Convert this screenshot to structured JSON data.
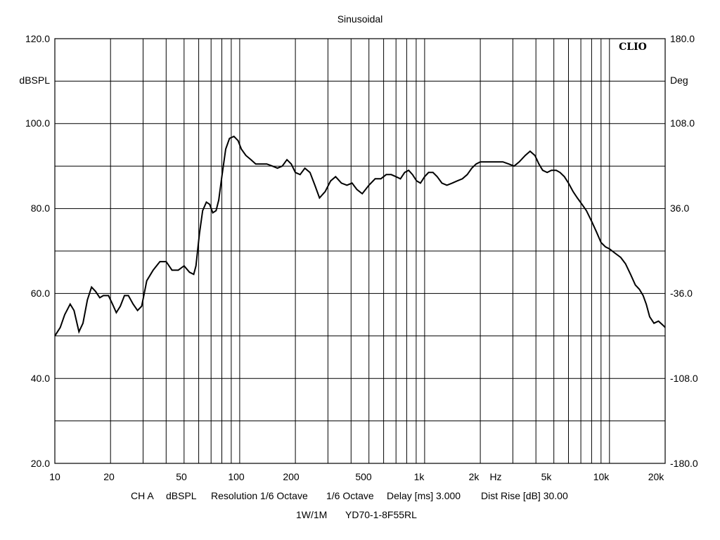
{
  "chart_data": {
    "type": "line",
    "title": "Sinusoidal",
    "watermark": "CLIO",
    "ylabel": "dBSPL",
    "y2label": "Deg",
    "xunit": "Hz",
    "xscale": "log",
    "xlim": [
      10,
      20000
    ],
    "ylim": [
      20,
      120
    ],
    "y2lim": [
      -180,
      180
    ],
    "grid": true,
    "y_ticks": [
      "120.0",
      "",
      "100.0",
      "80.0",
      "60.0",
      "40.0",
      "20.0"
    ],
    "y2_ticks": [
      "180.0",
      "108.0",
      "36.0",
      "-36.0",
      "-108.0",
      "-180.0"
    ],
    "x_ticks": [
      "10",
      "20",
      "50",
      "100",
      "200",
      "500",
      "1k",
      "2k",
      "5k",
      "10k",
      "20k"
    ],
    "footer_line1": [
      "CH A",
      "dBSPL",
      "Resolution 1/6 Octave",
      "1/6 Octave",
      "Delay [ms] 3.000",
      "Dist Rise [dB] 30.00"
    ],
    "footer_line2": [
      "1W/1M",
      "YD70-1-8F55RL"
    ],
    "series": [
      {
        "color": "#000000",
        "x": [
          10,
          10.7,
          11.3,
          12.1,
          12.7,
          13.5,
          14.2,
          15,
          15.8,
          16.6,
          17.5,
          18.3,
          19.5,
          20.5,
          21.5,
          22.6,
          23.8,
          25,
          26.5,
          28,
          29.5,
          31.4,
          34,
          37,
          40,
          43,
          46.5,
          50,
          53.5,
          56.4,
          58,
          60.5,
          63,
          66,
          68.8,
          71.5,
          74.5,
          77,
          80,
          84,
          88,
          93,
          98,
          102,
          108,
          115,
          122,
          130,
          140,
          150,
          160,
          170,
          180,
          190,
          200,
          212,
          225,
          240,
          255,
          270,
          290,
          310,
          330,
          355,
          380,
          405,
          430,
          460,
          500,
          540,
          580,
          620,
          660,
          700,
          740,
          780,
          820,
          860,
          905,
          950,
          1000,
          1050,
          1110,
          1170,
          1240,
          1320,
          1410,
          1500,
          1600,
          1700,
          1800,
          1900,
          2000,
          2150,
          2300,
          2450,
          2650,
          2850,
          3050,
          3250,
          3500,
          3720,
          3950,
          4150,
          4350,
          4600,
          4850,
          5150,
          5400,
          5700,
          6000,
          6350,
          6700,
          7100,
          7500,
          8000,
          8500,
          9000,
          9500,
          10000,
          10700,
          11500,
          12200,
          13000,
          13800,
          14500,
          15200,
          15800,
          16500,
          17400,
          18400,
          19500,
          20000
        ],
        "y": [
          50.0,
          52.0,
          55.0,
          57.5,
          56.0,
          51.0,
          53.0,
          58.5,
          61.5,
          60.5,
          59.0,
          59.5,
          59.5,
          57.5,
          55.5,
          57.0,
          59.5,
          59.5,
          57.5,
          56.0,
          57.0,
          63.0,
          65.5,
          67.5,
          67.5,
          65.5,
          65.5,
          66.5,
          65.0,
          64.5,
          66.5,
          74.0,
          79.5,
          81.5,
          81.0,
          79.0,
          79.5,
          82.0,
          87.5,
          94.0,
          96.5,
          97.0,
          96.0,
          94.0,
          92.5,
          91.5,
          90.5,
          90.5,
          90.5,
          90.0,
          89.5,
          90.0,
          91.5,
          90.5,
          88.5,
          88.0,
          89.5,
          88.5,
          85.5,
          82.5,
          84.0,
          86.5,
          87.5,
          86.0,
          85.5,
          86.0,
          84.5,
          83.5,
          85.5,
          87.0,
          87.0,
          88.0,
          88.0,
          87.5,
          87.0,
          88.5,
          89.0,
          88.0,
          86.5,
          86.0,
          87.5,
          88.5,
          88.5,
          87.5,
          86.0,
          85.5,
          86.0,
          86.5,
          87.0,
          88.0,
          89.5,
          90.5,
          91.0,
          91.0,
          91.0,
          91.0,
          91.0,
          90.5,
          90.0,
          91.0,
          92.5,
          93.5,
          92.5,
          90.5,
          89.0,
          88.5,
          89.0,
          89.0,
          88.5,
          87.5,
          86.0,
          84.0,
          82.5,
          81.0,
          79.5,
          77.0,
          74.5,
          72.0,
          71.0,
          70.5,
          69.5,
          68.5,
          67.0,
          64.5,
          62.0,
          61.0,
          59.5,
          57.5,
          54.5,
          53.0,
          53.5,
          52.5,
          52.0
        ]
      }
    ]
  }
}
